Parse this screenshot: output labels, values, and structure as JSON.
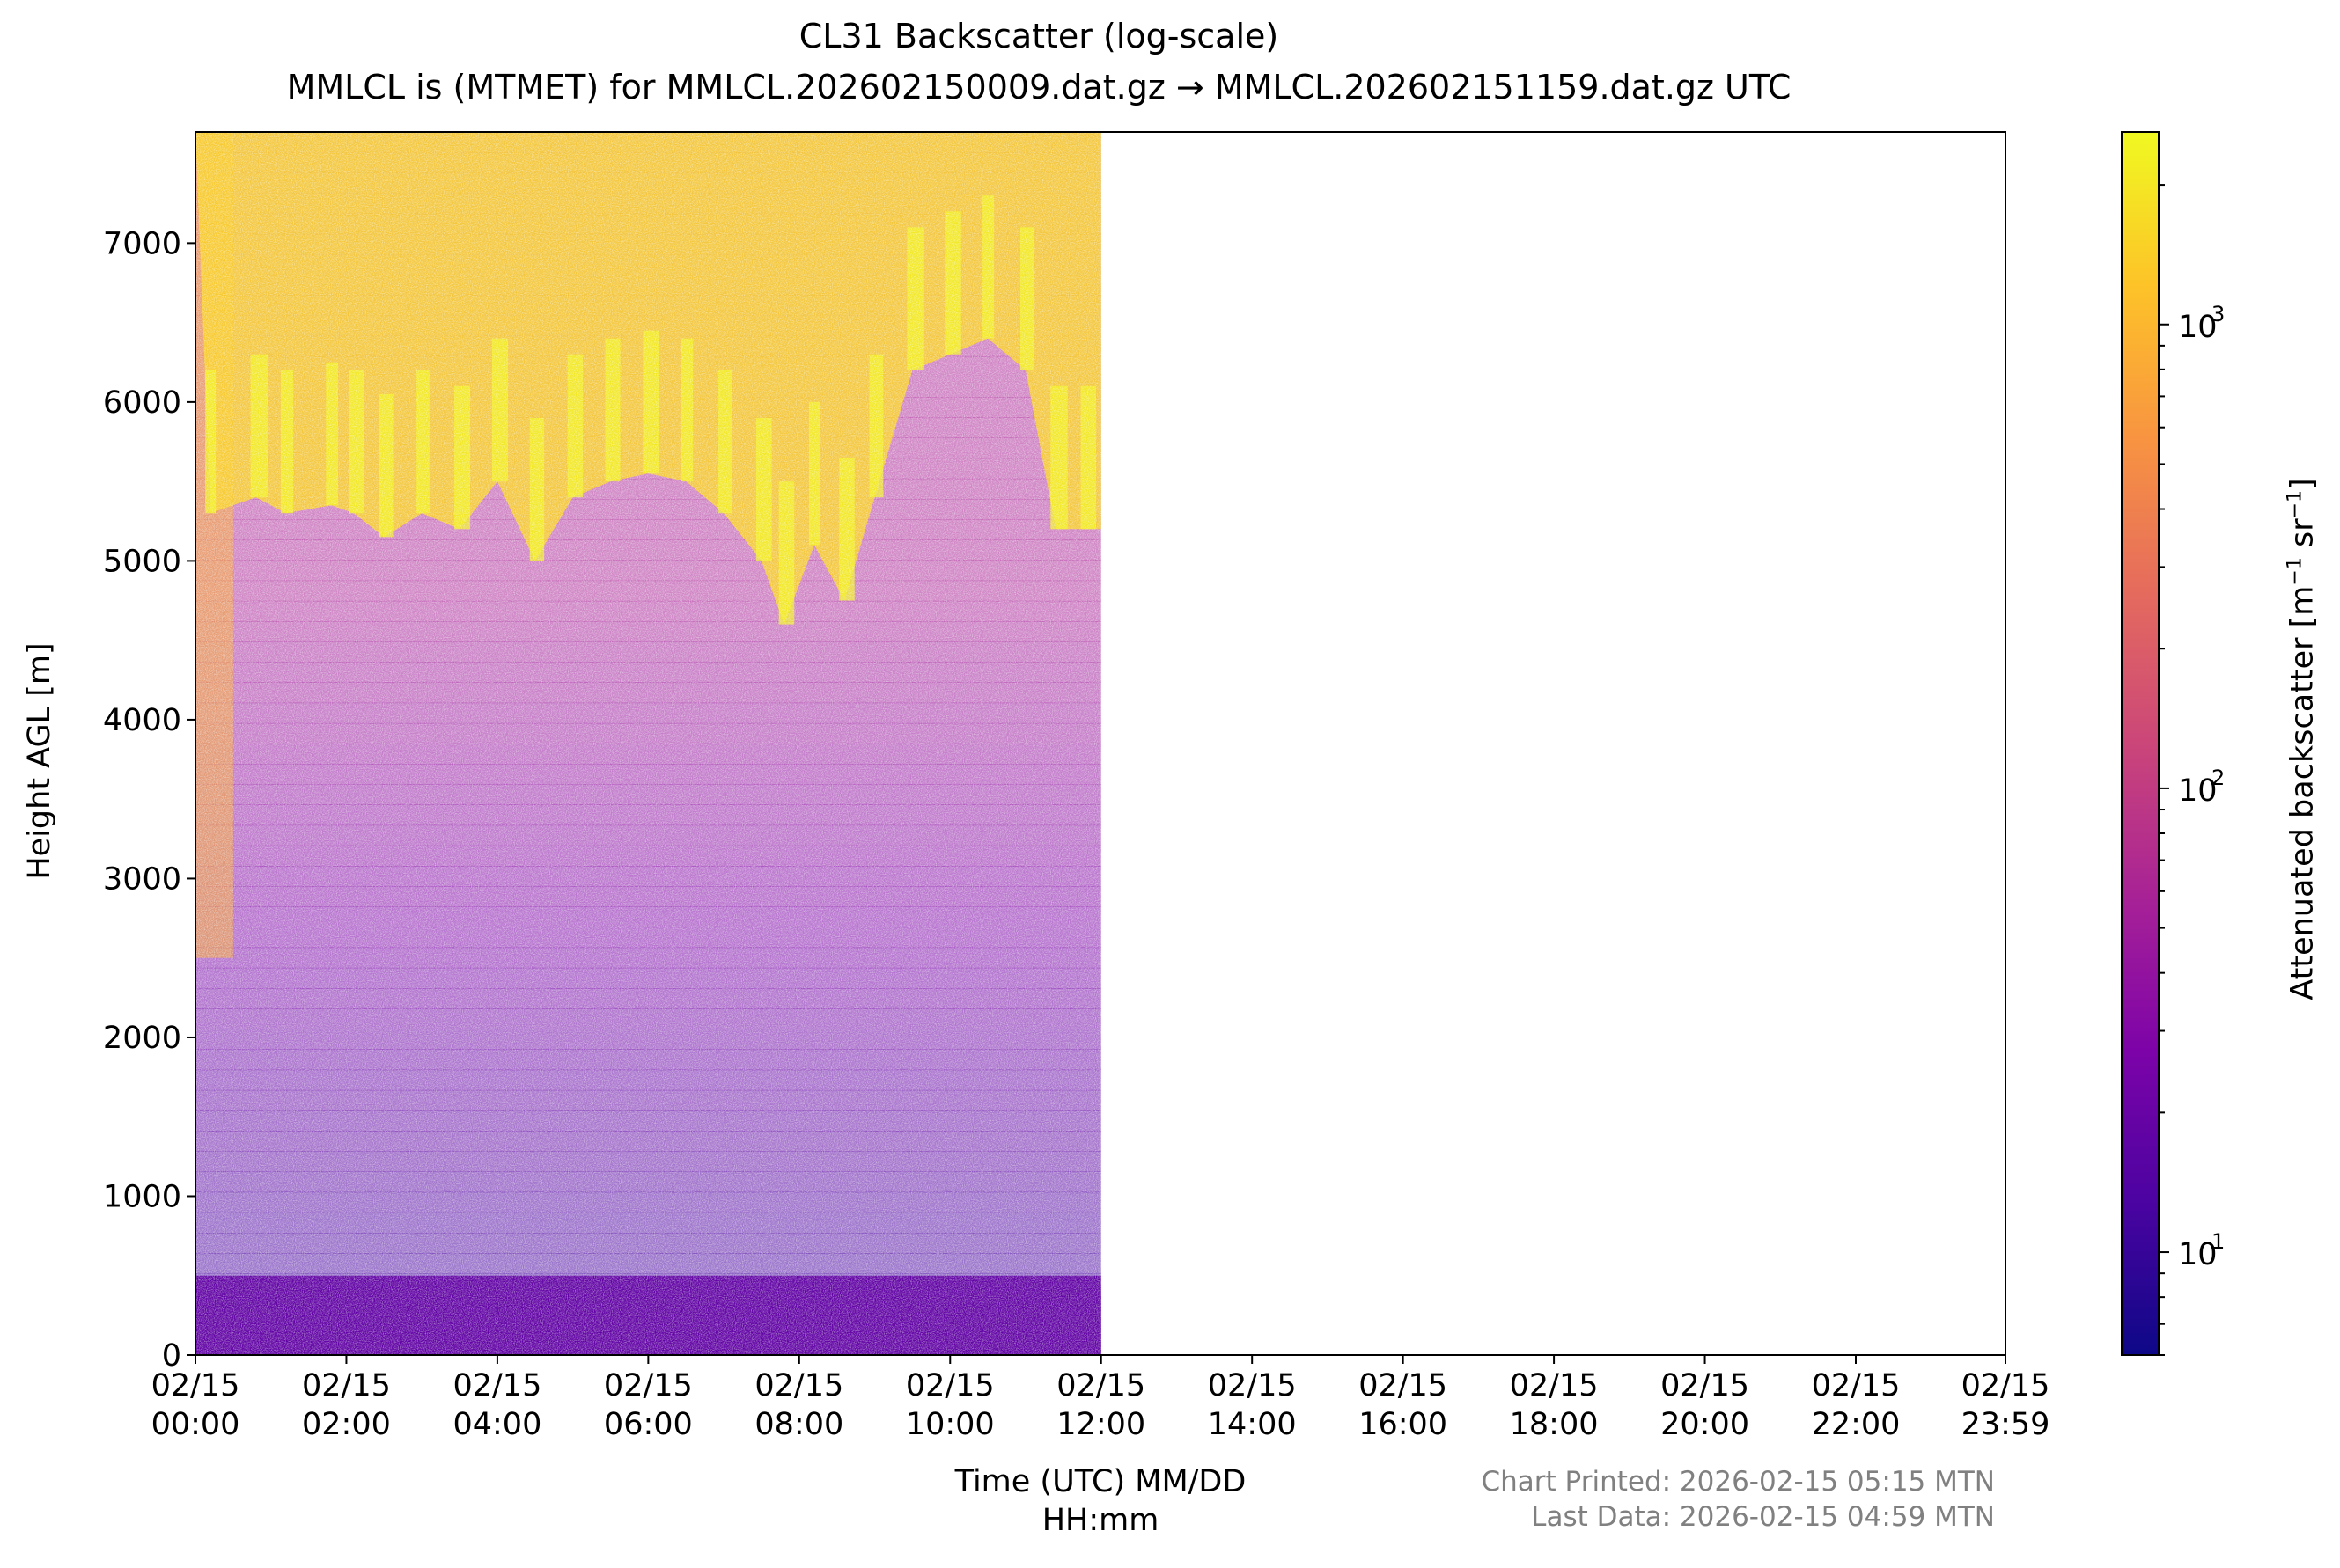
{
  "chart_data": {
    "type": "heatmap",
    "title": "CL31 Backscatter (log-scale)",
    "subtitle": "MMLCL is (MTMET) for MMLCL.202602150009.dat.gz → MMLCL.202602151159.dat.gz UTC",
    "xlabel_line1": "Time (UTC) MM/DD",
    "xlabel_line2": "HH:mm",
    "ylabel": "Height AGL [m]",
    "colorbar_label": "Attenuated backscatter [m",
    "colorbar_label_exp1": "−1",
    "colorbar_label_mid": " sr",
    "colorbar_label_exp2": "−1",
    "colorbar_label_end": "]",
    "colormap": "plasma",
    "colorbar_scale": "log",
    "colorbar_range": [
      6,
      2600
    ],
    "colorbar_ticks": [
      {
        "value": 10,
        "base": "10",
        "exp": "1"
      },
      {
        "value": 100,
        "base": "10",
        "exp": "2"
      },
      {
        "value": 1000,
        "base": "10",
        "exp": "3"
      }
    ],
    "ylim": [
      0,
      7700
    ],
    "yticks": [
      "0",
      "1000",
      "2000",
      "3000",
      "4000",
      "5000",
      "6000",
      "7000"
    ],
    "xlim_hours": [
      0,
      23.983
    ],
    "xticks": [
      {
        "hour": 0,
        "date": "02/15",
        "time": "00:00"
      },
      {
        "hour": 2,
        "date": "02/15",
        "time": "02:00"
      },
      {
        "hour": 4,
        "date": "02/15",
        "time": "04:00"
      },
      {
        "hour": 6,
        "date": "02/15",
        "time": "06:00"
      },
      {
        "hour": 8,
        "date": "02/15",
        "time": "08:00"
      },
      {
        "hour": 10,
        "date": "02/15",
        "time": "10:00"
      },
      {
        "hour": 12,
        "date": "02/15",
        "time": "12:00"
      },
      {
        "hour": 14,
        "date": "02/15",
        "time": "14:00"
      },
      {
        "hour": 16,
        "date": "02/15",
        "time": "16:00"
      },
      {
        "hour": 18,
        "date": "02/15",
        "time": "18:00"
      },
      {
        "hour": 20,
        "date": "02/15",
        "time": "20:00"
      },
      {
        "hour": 22,
        "date": "02/15",
        "time": "22:00"
      },
      {
        "hour": 23.983,
        "date": "02/15",
        "time": "23:59"
      }
    ],
    "data_end_hour": 12,
    "surface_layer": {
      "top_m": 500,
      "backscatter": 18
    },
    "cloud_base_series": {
      "name": "",
      "hours": [
        0.2,
        0.8,
        1.2,
        1.8,
        2.1,
        2.5,
        3.0,
        3.5,
        4.0,
        4.5,
        5.0,
        5.5,
        6.0,
        6.5,
        7.0,
        7.5,
        7.8,
        8.2,
        8.6,
        9.0,
        9.5,
        10.0,
        10.5,
        11.0,
        11.4,
        11.8
      ],
      "base_m": [
        5300,
        5400,
        5300,
        5350,
        5300,
        5150,
        5300,
        5200,
        5500,
        5000,
        5400,
        5500,
        5550,
        5500,
        5300,
        5000,
        4600,
        5100,
        4750,
        5400,
        6200,
        6300,
        6400,
        6200,
        5200,
        5200
      ]
    },
    "cloud_backscatter": 1500,
    "background_backscatter_aloft": 60
  },
  "footer": {
    "printed": "Chart Printed: 2026-02-15 05:15 MTN",
    "last_data": "Last Data: 2026-02-15 04:59 MTN"
  }
}
